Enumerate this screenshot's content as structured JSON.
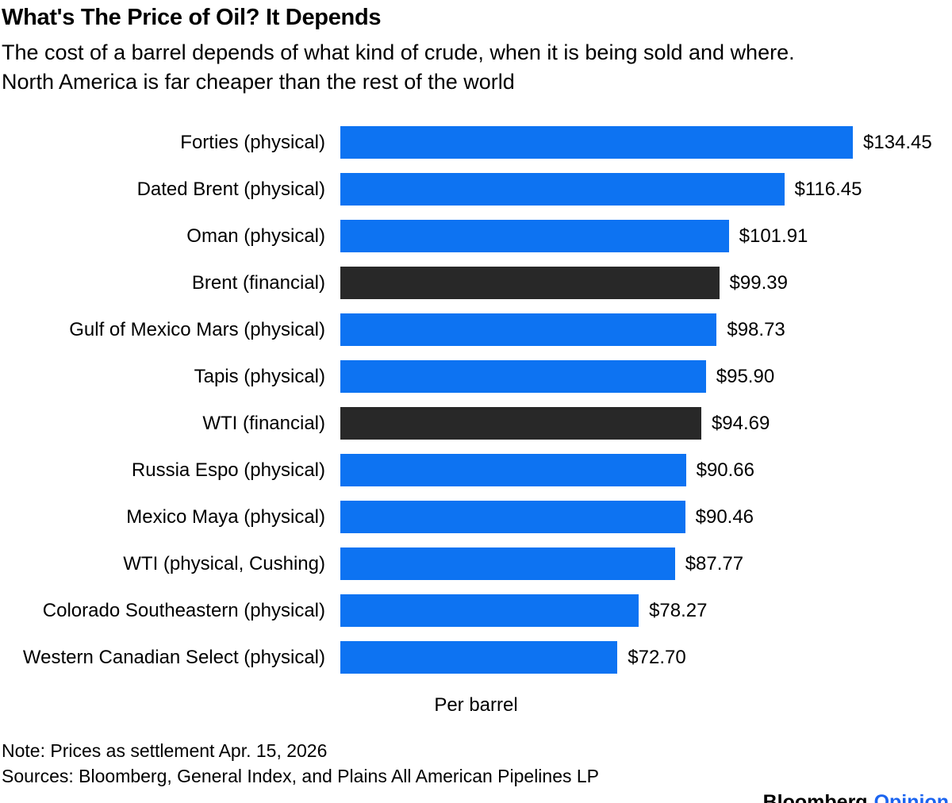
{
  "header": {
    "title": "What's The Price of Oil? It Depends",
    "subtitle_line1": "The cost of a barrel depends of what kind of crude, when it is being sold and where.",
    "subtitle_line2": "North America is far cheaper than the rest of the world"
  },
  "chart_data": {
    "type": "bar",
    "orientation": "horizontal",
    "title": "What's The Price of Oil? It Depends",
    "xlabel": "Per barrel",
    "ylabel": "",
    "xlim": [
      0,
      134.45
    ],
    "grid": false,
    "legend": "none",
    "categories": [
      "Forties (physical)",
      "Dated Brent (physical)",
      "Oman (physical)",
      "Brent (financial)",
      "Gulf of Mexico Mars (physical)",
      "Tapis (physical)",
      "WTI (financial)",
      "Russia Espo (physical)",
      "Mexico Maya (physical)",
      "WTI (physical, Cushing)",
      "Colorado Southeastern (physical)",
      "Western Canadian Select (physical)"
    ],
    "values": [
      134.45,
      116.45,
      101.91,
      99.39,
      98.73,
      95.9,
      94.69,
      90.66,
      90.46,
      87.77,
      78.27,
      72.7
    ],
    "value_labels": [
      "$134.45",
      "$116.45",
      "$101.91",
      "$99.39",
      "$98.73",
      "$95.90",
      "$94.69",
      "$90.66",
      "$90.46",
      "$87.77",
      "$78.27",
      "$72.70"
    ],
    "color_keys": [
      "physical_blue",
      "physical_blue",
      "physical_blue",
      "financial_dark",
      "physical_blue",
      "physical_blue",
      "financial_dark",
      "physical_blue",
      "physical_blue",
      "physical_blue",
      "physical_blue",
      "physical_blue"
    ],
    "palette": {
      "physical_blue": "#0d73f2",
      "financial_dark": "#282828"
    }
  },
  "footer": {
    "note": "Note: Prices as settlement Apr. 15, 2026",
    "sources": "Sources: Bloomberg, General Index, and Plains All American Pipelines LP",
    "brand": "Bloomberg",
    "brand_suffix": "Opinion",
    "brand_suffix_color": "#1b64f0",
    "brand_color": "#000000"
  }
}
